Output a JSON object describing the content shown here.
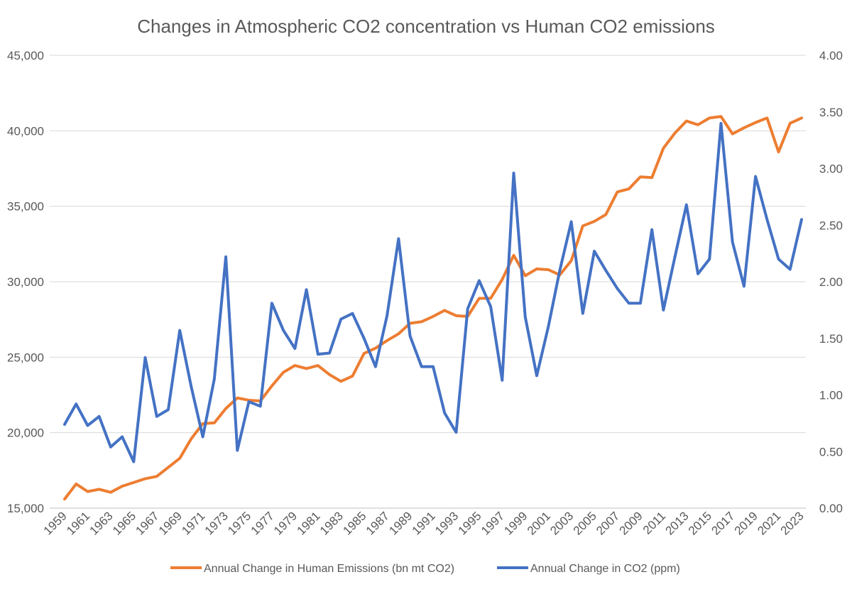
{
  "chart_data": {
    "type": "line",
    "title": "Changes in Atmospheric CO2 concentration vs Human CO2 emissions",
    "x": [
      1959,
      1960,
      1961,
      1962,
      1963,
      1964,
      1965,
      1966,
      1967,
      1968,
      1969,
      1970,
      1971,
      1972,
      1973,
      1974,
      1975,
      1976,
      1977,
      1978,
      1979,
      1980,
      1981,
      1982,
      1983,
      1984,
      1985,
      1986,
      1987,
      1988,
      1989,
      1990,
      1991,
      1992,
      1993,
      1994,
      1995,
      1996,
      1997,
      1998,
      1999,
      2000,
      2001,
      2002,
      2003,
      2004,
      2005,
      2006,
      2007,
      2008,
      2009,
      2010,
      2011,
      2012,
      2013,
      2014,
      2015,
      2016,
      2017,
      2018,
      2019,
      2020,
      2021,
      2022,
      2023
    ],
    "x_tick_labels": [
      "1959",
      "1961",
      "1963",
      "1965",
      "1967",
      "1969",
      "1971",
      "1973",
      "1975",
      "1977",
      "1979",
      "1981",
      "1983",
      "1985",
      "1987",
      "1989",
      "1991",
      "1993",
      "1995",
      "1997",
      "1999",
      "2001",
      "2003",
      "2005",
      "2007",
      "2009",
      "2011",
      "2013",
      "2015",
      "2017",
      "2019",
      "2021",
      "2023"
    ],
    "y_left": {
      "min": 15000,
      "max": 45000,
      "ticks": [
        "15,000",
        "20,000",
        "25,000",
        "30,000",
        "35,000",
        "40,000",
        "45,000"
      ]
    },
    "y_right": {
      "min": 0,
      "max": 4,
      "ticks": [
        "0.00",
        "0.50",
        "1.00",
        "1.50",
        "2.00",
        "2.50",
        "3.00",
        "3.50",
        "4.00"
      ]
    },
    "series": [
      {
        "name": "Annual Change in Human Emissions (bn mt CO2)",
        "axis": "left",
        "color": "#ED7D31",
        "values": [
          15600,
          16600,
          16100,
          16250,
          16050,
          16450,
          16700,
          16950,
          17100,
          17700,
          18300,
          19600,
          20600,
          20650,
          21600,
          22300,
          22150,
          22100,
          23100,
          24000,
          24450,
          24250,
          24450,
          23850,
          23400,
          23750,
          25250,
          25600,
          26100,
          26550,
          27250,
          27350,
          27700,
          28100,
          27750,
          27700,
          28900,
          28900,
          30150,
          31750,
          30400,
          30850,
          30800,
          30450,
          31400,
          33700,
          34000,
          34450,
          35950,
          36150,
          36950,
          36900,
          38850,
          39850,
          40650,
          40400,
          40850,
          40950,
          39800,
          40200,
          40550,
          40850,
          38600,
          40500,
          40850
        ]
      },
      {
        "name": "Annual Change in CO2 (ppm)",
        "axis": "right",
        "color": "#4472C4",
        "values": [
          0.74,
          0.92,
          0.73,
          0.81,
          0.54,
          0.63,
          0.41,
          1.33,
          0.81,
          0.87,
          1.57,
          1.07,
          0.63,
          1.14,
          2.22,
          0.51,
          0.94,
          0.9,
          1.81,
          1.57,
          1.41,
          1.93,
          1.36,
          1.37,
          1.67,
          1.72,
          1.5,
          1.25,
          1.7,
          2.38,
          1.52,
          1.25,
          1.25,
          0.84,
          0.67,
          1.76,
          2.01,
          1.78,
          1.13,
          2.96,
          1.69,
          1.17,
          1.6,
          2.1,
          2.53,
          1.72,
          2.27,
          2.1,
          1.94,
          1.81,
          1.81,
          2.46,
          1.75,
          2.22,
          2.68,
          2.07,
          2.2,
          3.4,
          2.35,
          1.96,
          2.93,
          2.55,
          2.2,
          2.11,
          2.55
        ]
      }
    ],
    "legend_position": "bottom",
    "grid": true
  }
}
